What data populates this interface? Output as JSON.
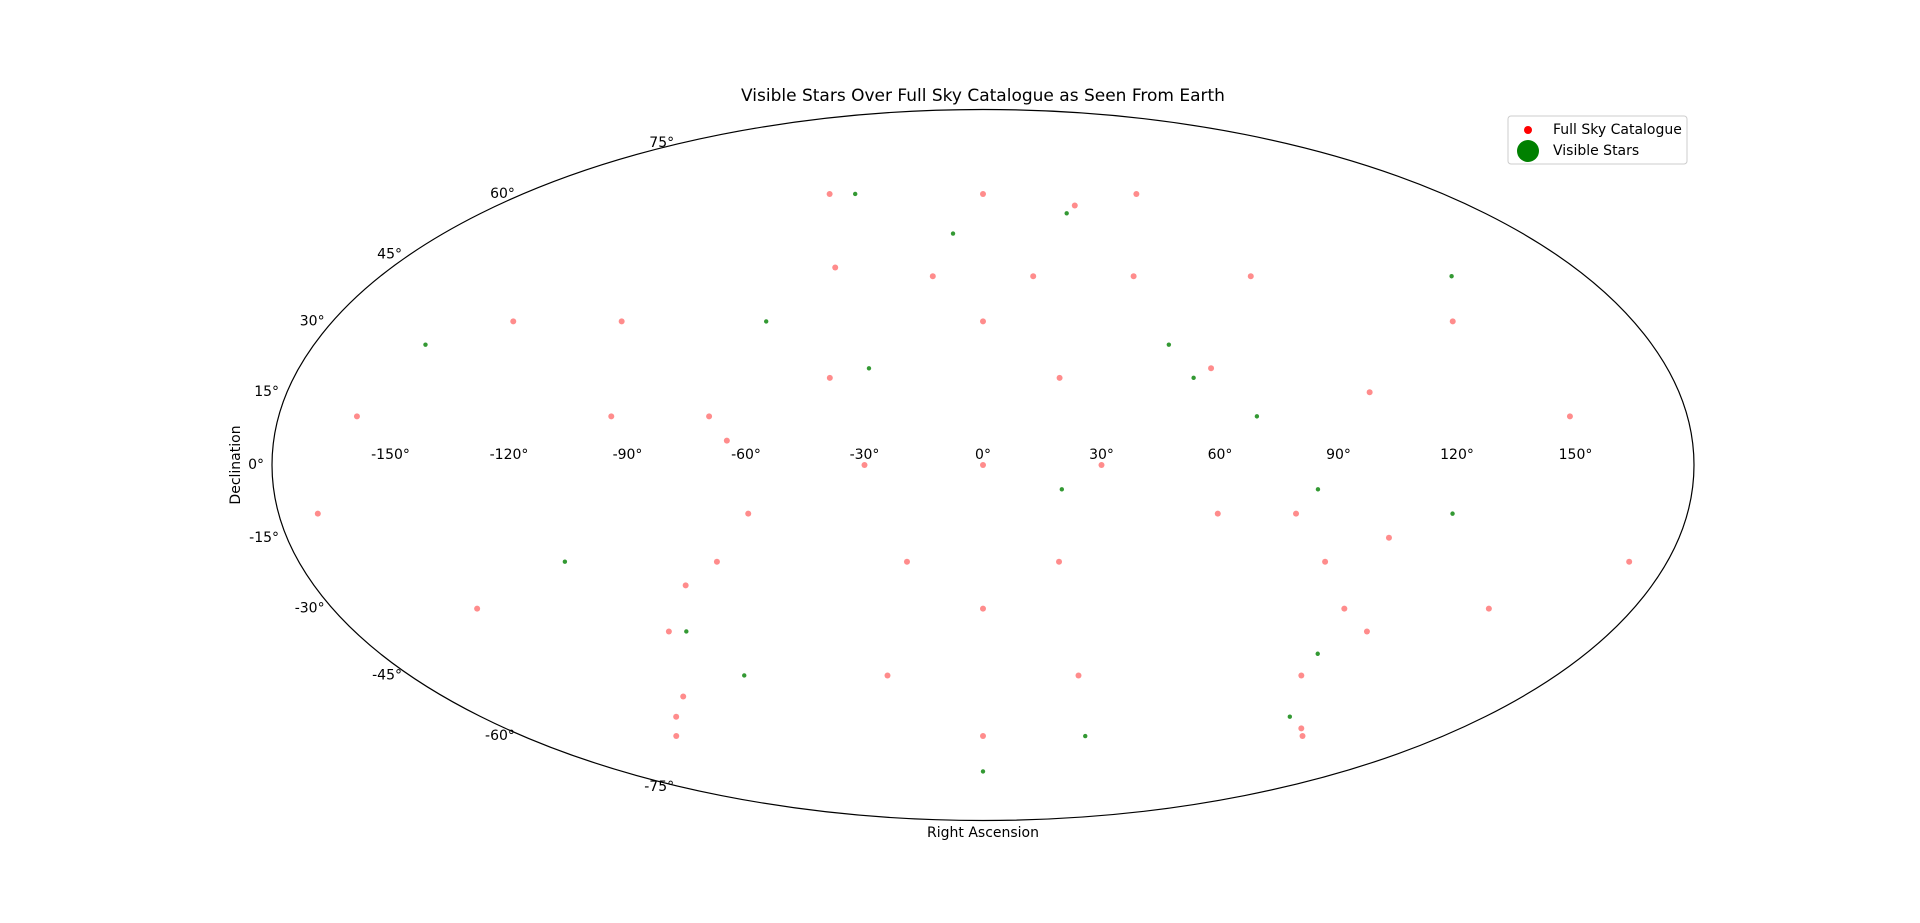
{
  "chart_data": {
    "type": "scatter",
    "projection": "mollweide",
    "title": "Visible Stars Over Full Sky Catalogue as Seen From Earth",
    "x_label": "Right Ascension",
    "y_label": "Declination",
    "xlim": [
      -180,
      180
    ],
    "ylim": [
      -90,
      90
    ],
    "grid": false,
    "legend_position": "upper right",
    "xticks": [
      {
        "value": -150,
        "label": "-150°"
      },
      {
        "value": -120,
        "label": "-120°"
      },
      {
        "value": -90,
        "label": "-90°"
      },
      {
        "value": -60,
        "label": "-60°"
      },
      {
        "value": -30,
        "label": "-30°"
      },
      {
        "value": 0,
        "label": "0°"
      },
      {
        "value": 30,
        "label": "30°"
      },
      {
        "value": 60,
        "label": "60°"
      },
      {
        "value": 90,
        "label": "90°"
      },
      {
        "value": 120,
        "label": "120°"
      },
      {
        "value": 150,
        "label": "150°"
      }
    ],
    "yticks": [
      {
        "value": -75,
        "label": "-75°"
      },
      {
        "value": -60,
        "label": "-60°"
      },
      {
        "value": -45,
        "label": "-45°"
      },
      {
        "value": -30,
        "label": "-30°"
      },
      {
        "value": -15,
        "label": "-15°"
      },
      {
        "value": 0,
        "label": "0°"
      },
      {
        "value": 15,
        "label": "15°"
      },
      {
        "value": 30,
        "label": "30°"
      },
      {
        "value": 45,
        "label": "45°"
      },
      {
        "value": 60,
        "label": "60°"
      },
      {
        "value": 75,
        "label": "75°"
      }
    ],
    "series": [
      {
        "name": "Full Sky Catalogue",
        "color": "#ff0000",
        "x": [
          34,
          -45,
          -15,
          15,
          45,
          -70,
          -65,
          -80,
          -70,
          -90,
          -110,
          -120,
          -100,
          90,
          100,
          110,
          120,
          125,
          100,
          105,
          80,
          60,
          -95,
          -40,
          20,
          100,
          150,
          -160,
          0,
          -30,
          30,
          -60,
          60,
          -140,
          140,
          0,
          -30,
          30,
          0,
          -60,
          60,
          -130,
          130,
          -170,
          170,
          0,
          -20,
          20,
          0,
          80,
          -100
        ],
        "y": [
          57,
          42,
          40,
          40,
          40,
          10,
          5,
          -25,
          -20,
          -35,
          -55,
          -60,
          -50,
          -20,
          -30,
          -35,
          -58,
          -60,
          -45,
          -15,
          -10,
          20,
          10,
          18,
          18,
          15,
          10,
          10,
          0,
          0,
          0,
          -10,
          -10,
          -30,
          -30,
          -60,
          -45,
          -45,
          60,
          60,
          60,
          30,
          30,
          -10,
          -20,
          30,
          -20,
          -20,
          -30,
          40,
          30
        ]
      },
      {
        "name": "Visible Stars",
        "color": "#008000",
        "x": [
          50,
          55,
          -60,
          85,
          -85,
          110,
          -50,
          30,
          -150,
          0,
          100,
          -110,
          20,
          -30,
          140,
          120,
          -75,
          70,
          40,
          -10
        ],
        "y": [
          25,
          18,
          30,
          -5,
          -35,
          -55,
          60,
          55,
          25,
          -70,
          -40,
          -20,
          -5,
          20,
          40,
          -10,
          -45,
          10,
          -60,
          50
        ]
      }
    ]
  }
}
